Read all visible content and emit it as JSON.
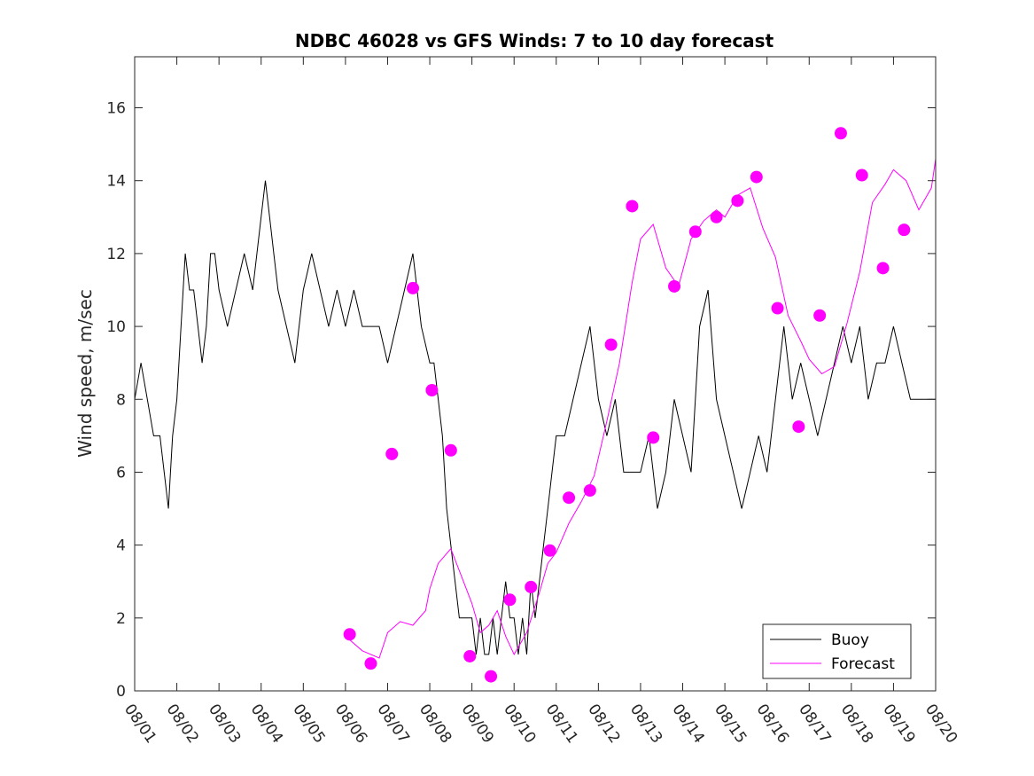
{
  "chart_data": {
    "type": "line",
    "title": "NDBC 46028 vs GFS Winds: 7 to 10 day forecast",
    "xlabel": "",
    "ylabel": "Wind speed, m/sec",
    "xlim": [
      0,
      19
    ],
    "ylim": [
      0,
      17.4
    ],
    "x_tick_labels": [
      "08/01",
      "08/02",
      "08/03",
      "08/04",
      "08/05",
      "08/06",
      "08/07",
      "08/08",
      "08/09",
      "08/10",
      "08/11",
      "08/12",
      "08/13",
      "08/14",
      "08/15",
      "08/16",
      "08/17",
      "08/18",
      "08/19",
      "08/20"
    ],
    "y_ticks": [
      0,
      2,
      4,
      6,
      8,
      10,
      12,
      14,
      16
    ],
    "legend": {
      "position": "bottom-right",
      "entries": [
        "Buoy",
        "Forecast"
      ]
    },
    "colors": {
      "buoy": "#000000",
      "forecast": "#ff00ff",
      "axes": "#262626"
    },
    "series": [
      {
        "name": "Buoy",
        "x": [
          0,
          0.15,
          0.3,
          0.45,
          0.6,
          0.7,
          0.8,
          0.85,
          0.9,
          1.0,
          1.1,
          1.2,
          1.3,
          1.4,
          1.5,
          1.6,
          1.7,
          1.8,
          1.9,
          2.0,
          2.2,
          2.4,
          2.6,
          2.8,
          3.0,
          3.1,
          3.2,
          3.3,
          3.4,
          3.6,
          3.8,
          4.0,
          4.2,
          4.4,
          4.6,
          4.8,
          5.0,
          5.2,
          5.4,
          5.6,
          5.8,
          6.0,
          6.2,
          6.4,
          6.6,
          6.8,
          7.0,
          7.1,
          7.2,
          7.3,
          7.4,
          7.5,
          7.6,
          7.7,
          7.8,
          7.9,
          8.0,
          8.1,
          8.2,
          8.3,
          8.4,
          8.5,
          8.6,
          8.7,
          8.8,
          8.9,
          9.0,
          9.1,
          9.2,
          9.3,
          9.4,
          9.5,
          9.6,
          9.7,
          9.8,
          9.9,
          10.0,
          10.2,
          10.4,
          10.6,
          10.8,
          11.0,
          11.2,
          11.4,
          11.6,
          11.8,
          12.0,
          12.2,
          12.4,
          12.6,
          12.8,
          13.0,
          13.2,
          13.4,
          13.6,
          13.8,
          14.0,
          14.2,
          14.4,
          14.6,
          14.8,
          15.0,
          15.2,
          15.4,
          15.6,
          15.8,
          16.0,
          16.2,
          16.4,
          16.6,
          16.8,
          17.0,
          17.2,
          17.4,
          17.6,
          17.8,
          18.0,
          18.2,
          18.4,
          18.6,
          18.8,
          19.0
        ],
        "values": [
          8,
          9,
          8,
          7,
          7,
          6,
          5,
          6,
          7,
          8,
          10,
          12,
          11,
          11,
          10,
          9,
          10,
          12,
          12,
          11,
          10,
          11,
          12,
          11,
          13,
          14,
          13,
          12,
          11,
          10,
          9,
          11,
          12,
          11,
          10,
          11,
          10,
          11,
          10,
          10,
          10,
          9,
          10,
          11,
          12,
          10,
          9,
          9,
          8,
          7,
          5,
          4,
          3,
          2,
          2,
          2,
          2,
          1,
          2,
          1,
          1,
          2,
          1,
          2,
          3,
          2,
          2,
          1,
          2,
          1,
          3,
          2,
          3,
          4,
          5,
          6,
          7,
          7,
          8,
          9,
          10,
          8,
          7,
          8,
          6,
          6,
          6,
          7,
          5,
          6,
          8,
          7,
          6,
          10,
          11,
          8,
          7,
          6,
          5,
          6,
          7,
          6,
          8,
          10,
          8,
          9,
          8,
          7,
          8,
          9,
          10,
          9,
          10,
          8,
          9,
          9,
          10,
          9,
          8,
          8,
          8,
          8
        ],
        "markers": []
      },
      {
        "name": "Forecast",
        "x": [
          5.0,
          5.4,
          5.8,
          6.0,
          6.3,
          6.6,
          6.9,
          7.0,
          7.2,
          7.5,
          7.8,
          8.0,
          8.2,
          8.4,
          8.6,
          8.8,
          9.0,
          9.3,
          9.6,
          9.8,
          10.0,
          10.3,
          10.6,
          10.9,
          11.2,
          11.5,
          11.8,
          12.0,
          12.3,
          12.6,
          12.9,
          13.2,
          13.5,
          13.8,
          14.0,
          14.3,
          14.6,
          14.9,
          15.2,
          15.5,
          15.8,
          16.0,
          16.3,
          16.6,
          16.9,
          17.2,
          17.5,
          17.8,
          18.0,
          18.3,
          18.6,
          18.9,
          19.0
        ],
        "values": [
          1.5,
          1.1,
          0.9,
          1.6,
          1.9,
          1.8,
          2.2,
          2.8,
          3.5,
          3.9,
          3.0,
          2.4,
          1.6,
          1.8,
          2.2,
          1.5,
          1.0,
          1.6,
          2.7,
          3.5,
          3.8,
          4.6,
          5.2,
          5.9,
          7.4,
          9.0,
          11.2,
          12.4,
          12.8,
          11.6,
          11.1,
          12.4,
          12.9,
          13.2,
          13.0,
          13.6,
          13.8,
          12.7,
          11.9,
          10.3,
          9.6,
          9.1,
          8.7,
          8.9,
          10.1,
          11.5,
          13.4,
          13.9,
          14.3,
          14.0,
          13.2,
          13.8,
          14.6
        ],
        "markers": [
          {
            "x": 5.1,
            "y": 1.55
          },
          {
            "x": 5.6,
            "y": 0.75
          },
          {
            "x": 6.1,
            "y": 6.5
          },
          {
            "x": 6.6,
            "y": 11.05
          },
          {
            "x": 7.05,
            "y": 8.25
          },
          {
            "x": 7.5,
            "y": 6.6
          },
          {
            "x": 7.95,
            "y": 0.95
          },
          {
            "x": 8.45,
            "y": 0.4
          },
          {
            "x": 8.9,
            "y": 2.5
          },
          {
            "x": 9.4,
            "y": 2.85
          },
          {
            "x": 9.85,
            "y": 3.85
          },
          {
            "x": 10.3,
            "y": 5.3
          },
          {
            "x": 10.8,
            "y": 5.5
          },
          {
            "x": 11.3,
            "y": 9.5
          },
          {
            "x": 11.8,
            "y": 13.3
          },
          {
            "x": 12.3,
            "y": 6.95
          },
          {
            "x": 12.8,
            "y": 11.1
          },
          {
            "x": 13.3,
            "y": 12.6
          },
          {
            "x": 13.8,
            "y": 13.0
          },
          {
            "x": 14.3,
            "y": 13.45
          },
          {
            "x": 14.75,
            "y": 14.1
          },
          {
            "x": 15.25,
            "y": 10.5
          },
          {
            "x": 15.75,
            "y": 7.25
          },
          {
            "x": 16.25,
            "y": 10.3
          },
          {
            "x": 16.75,
            "y": 15.3
          },
          {
            "x": 17.25,
            "y": 14.15
          },
          {
            "x": 17.75,
            "y": 11.6
          },
          {
            "x": 18.25,
            "y": 12.65
          }
        ]
      }
    ]
  }
}
